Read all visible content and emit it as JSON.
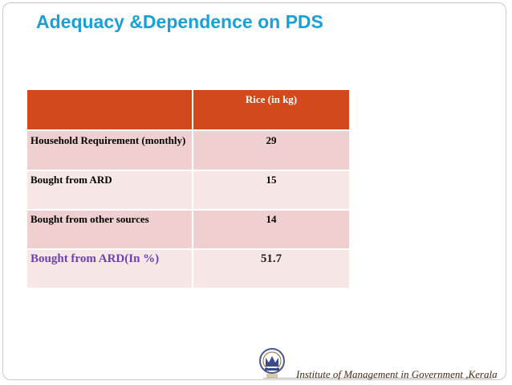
{
  "slide": {
    "title": "Adequacy &Dependence on PDS",
    "footer_text": "Institute of Management in Government ,Kerala"
  },
  "table": {
    "header": [
      "",
      "Rice (in kg)"
    ],
    "rows": [
      {
        "label": " Household Requirement (monthly)",
        "value": "29"
      },
      {
        "label": "Bought from ARD",
        "value": "15"
      },
      {
        "label": "Bought from other sources",
        "value": "14"
      },
      {
        "label": "Bought from ARD(In %)",
        "value": "51.7"
      }
    ]
  },
  "colors": {
    "title": "#1aa0d8",
    "header_bg": "#d24a1b",
    "row_dark": "#efcfcf",
    "row_light": "#f7e7e7",
    "percent_label": "#6e3fb5"
  },
  "icons": {
    "logo": "institute-logo"
  }
}
